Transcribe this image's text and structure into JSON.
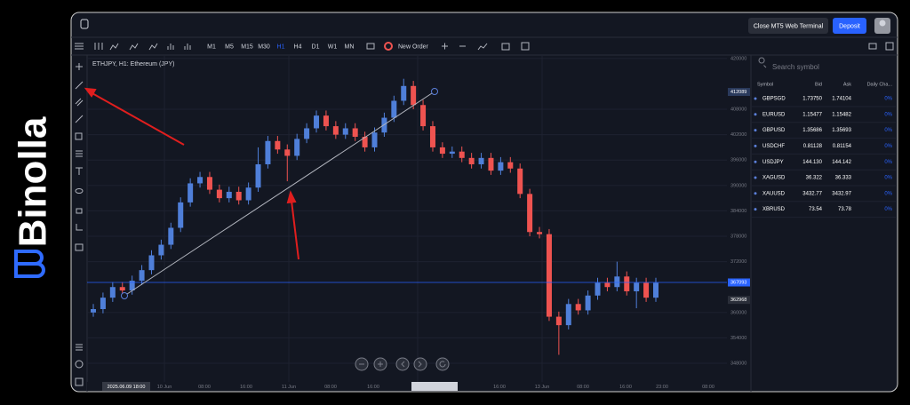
{
  "brand": "Binolla",
  "header": {
    "close_button": "Close MT5 Web Terminal",
    "deposit_button": "Deposit"
  },
  "toolbar": {
    "timeframes": [
      "M1",
      "M5",
      "M15",
      "M30",
      "H1",
      "H4",
      "D1",
      "W1",
      "MN"
    ],
    "new_order": "New Order"
  },
  "chart_data": {
    "type": "candlestick",
    "title": "ETHJPY, H1: Ethereum (JPY)",
    "up_color": "#4f7fd9",
    "down_color": "#ef5350",
    "ylim": [
      343600,
      420800
    ],
    "yticks": [
      420000,
      408000,
      402000,
      396000,
      390000,
      384000,
      378000,
      372000,
      360000,
      354000,
      348000
    ],
    "price_lines": [
      {
        "value": 412089,
        "color": "#2a3a5c"
      },
      {
        "value": 367093,
        "color": "#2962ff",
        "line": true
      },
      {
        "value": 362968,
        "color": "#2a2e39"
      }
    ],
    "x_labels": [
      "2025.06.09 18:00",
      "10 Jun",
      "08:00",
      "16:00",
      "11 Jun",
      "08:00",
      "16:00",
      "16:00",
      "13 Jun",
      "08:00",
      "16:00",
      "23:00",
      "08:00"
    ],
    "candles": [
      [
        360000,
        362000,
        359000,
        360800
      ],
      [
        360800,
        364700,
        359800,
        363500
      ],
      [
        363500,
        367200,
        362500,
        366000
      ],
      [
        366000,
        367200,
        364200,
        365200
      ],
      [
        365200,
        368700,
        364200,
        367500
      ],
      [
        367500,
        371200,
        366500,
        370000
      ],
      [
        370000,
        374700,
        369000,
        373500
      ],
      [
        373500,
        377200,
        372500,
        376000
      ],
      [
        376000,
        381200,
        375000,
        380000
      ],
      [
        380000,
        387200,
        379000,
        386000
      ],
      [
        386000,
        391700,
        385000,
        390500
      ],
      [
        390500,
        393200,
        389500,
        392000
      ],
      [
        392000,
        393200,
        388000,
        389000
      ],
      [
        389000,
        390200,
        386000,
        387000
      ],
      [
        387000,
        389700,
        386000,
        388500
      ],
      [
        388500,
        389700,
        385500,
        386500
      ],
      [
        386500,
        390700,
        385500,
        389500
      ],
      [
        389500,
        399000,
        388500,
        395000
      ],
      [
        395000,
        401700,
        394000,
        400500
      ],
      [
        400500,
        401700,
        397500,
        398500
      ],
      [
        398500,
        399700,
        391000,
        397000
      ],
      [
        397000,
        402200,
        396000,
        401000
      ],
      [
        401000,
        404700,
        400000,
        403500
      ],
      [
        403500,
        407700,
        402500,
        406500
      ],
      [
        406500,
        407700,
        403000,
        404000
      ],
      [
        404000,
        405200,
        401000,
        402000
      ],
      [
        402000,
        404700,
        401000,
        403500
      ],
      [
        403500,
        404700,
        400500,
        401500
      ],
      [
        401500,
        402700,
        398000,
        399000
      ],
      [
        399000,
        403700,
        398000,
        402500
      ],
      [
        402500,
        407200,
        401500,
        406000
      ],
      [
        406000,
        411200,
        405000,
        410000
      ],
      [
        410000,
        415200,
        409000,
        413500
      ],
      [
        413500,
        414700,
        408000,
        409000
      ],
      [
        409000,
        410200,
        403000,
        404000
      ],
      [
        404000,
        405200,
        398000,
        399000
      ],
      [
        399000,
        400200,
        396500,
        397500
      ],
      [
        397500,
        399200,
        396500,
        398000
      ],
      [
        398000,
        399200,
        395500,
        396500
      ],
      [
        396500,
        397700,
        394000,
        395000
      ],
      [
        395000,
        397700,
        394000,
        396500
      ],
      [
        396500,
        397700,
        392500,
        393500
      ],
      [
        393500,
        396700,
        392500,
        395500
      ],
      [
        395500,
        396700,
        393000,
        394000
      ],
      [
        394000,
        395200,
        387000,
        388000
      ],
      [
        388000,
        389200,
        378000,
        379000
      ],
      [
        379000,
        380200,
        377500,
        378500
      ],
      [
        378500,
        379700,
        358000,
        359000
      ],
      [
        359000,
        360200,
        350000,
        357000
      ],
      [
        357000,
        363200,
        356000,
        362000
      ],
      [
        362000,
        363200,
        359500,
        360500
      ],
      [
        360500,
        365200,
        359500,
        364000
      ],
      [
        364000,
        368200,
        363000,
        367000
      ],
      [
        367000,
        368200,
        365000,
        366000
      ],
      [
        366000,
        372000,
        365000,
        368500
      ],
      [
        368500,
        369700,
        364000,
        365000
      ],
      [
        365000,
        368200,
        361000,
        367000
      ],
      [
        367000,
        368200,
        362500,
        363500
      ],
      [
        363500,
        368200,
        362500,
        367000
      ]
    ]
  },
  "watchlist": {
    "search_placeholder": "Search symbol",
    "columns": [
      "Symbol",
      "Bid",
      "Ask",
      "Daily Cha..."
    ],
    "rows": [
      [
        "GBPSGD",
        "1.73750",
        "1.74104",
        "0%"
      ],
      [
        "EURUSD",
        "1.15477",
        "1.15482",
        "0%"
      ],
      [
        "GBPUSD",
        "1.35686",
        "1.35693",
        "0%"
      ],
      [
        "USDCHF",
        "0.81128",
        "0.81154",
        "0%"
      ],
      [
        "USDJPY",
        "144.130",
        "144.142",
        "0%"
      ],
      [
        "XAGUSD",
        "36.322",
        "36.333",
        "0%"
      ],
      [
        "XAUUSD",
        "3432.77",
        "3432.97",
        "0%"
      ],
      [
        "XBRUSD",
        "73.54",
        "73.78",
        "0%"
      ]
    ]
  }
}
